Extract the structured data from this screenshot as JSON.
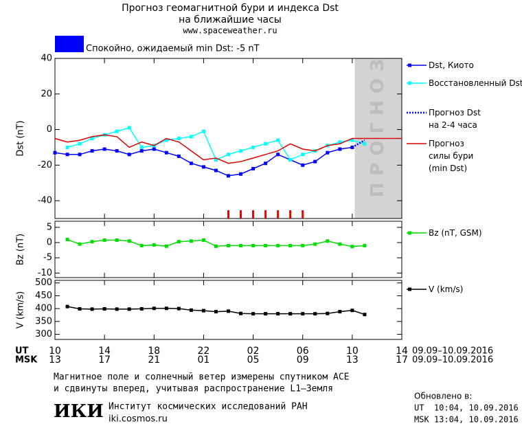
{
  "header": {
    "title_line1": "Прогноз геомагнитной бури и индекса Dst",
    "title_line2": "на ближайшие часы",
    "url": "www.spaceweather.ru",
    "status_color": "#0000ff",
    "status": "Спокойно, ожидаемый min Dst: -5 nT"
  },
  "chart_data": [
    {
      "type": "line",
      "ylabel": "Dst (nT)",
      "xlim": [
        0,
        28
      ],
      "ylim": [
        -50,
        40
      ],
      "yticks": [
        -40,
        -20,
        0,
        20,
        40
      ],
      "forecast_start": 24.2,
      "forecast_label": "ПРОГНОЗ",
      "storm_marks": [
        14,
        15,
        16,
        17,
        18,
        19,
        20
      ],
      "storm_color": "#ee0000",
      "series": [
        {
          "name": "Dst, Киото",
          "color": "#0000ff",
          "marker": true,
          "x": [
            0,
            1,
            2,
            3,
            4,
            5,
            6,
            7,
            8,
            9,
            10,
            11,
            12,
            13,
            14,
            15,
            16,
            17,
            18,
            19,
            20,
            21,
            22,
            23,
            24
          ],
          "values": [
            -13,
            -14,
            -14,
            -12,
            -11,
            -12,
            -14,
            -12,
            -11,
            -13,
            -15,
            -19,
            -21,
            -23,
            -26,
            -25,
            -22,
            -19,
            -14,
            -17,
            -20,
            -18,
            -13,
            -11,
            -10
          ]
        },
        {
          "name": "Восстановленный Dst",
          "color": "#00ffff",
          "marker": true,
          "x": [
            1,
            2,
            3,
            4,
            5,
            6,
            7,
            8,
            9,
            10,
            11,
            12,
            13,
            14,
            15,
            16,
            17,
            18,
            19,
            20,
            21,
            22,
            23,
            24,
            25
          ],
          "values": [
            -10,
            -8,
            -5,
            -3,
            -1,
            1,
            -10,
            -9,
            -6,
            -5,
            -4,
            -1,
            -17,
            -14,
            -12,
            -10,
            -8,
            -6,
            -17,
            -14,
            -12,
            -9,
            -7,
            -6,
            -8
          ]
        },
        {
          "name": "Прогноз Dst на 2-4 часа",
          "color": "#0000ff",
          "dotted": true,
          "x": [
            24,
            24.5,
            25
          ],
          "values": [
            -10,
            -8,
            -6
          ]
        },
        {
          "name": "Прогноз силы бури (min Dst)",
          "color": "#dd0000",
          "x": [
            0,
            1,
            2,
            3,
            4,
            5,
            6,
            7,
            8,
            9,
            10,
            11,
            12,
            13,
            14,
            15,
            16,
            17,
            18,
            19,
            20,
            21,
            22,
            23,
            24,
            25,
            26,
            27,
            28
          ],
          "values": [
            -5,
            -7,
            -6,
            -4,
            -3,
            -4,
            -10,
            -7,
            -9,
            -5,
            -7,
            -12,
            -17,
            -16,
            -19,
            -18,
            -16,
            -14,
            -12,
            -8,
            -11,
            -12,
            -9,
            -8,
            -5,
            -5,
            -5,
            -5,
            -5
          ]
        }
      ]
    },
    {
      "type": "line",
      "ylabel": "Bz (nT)",
      "xlim": [
        0,
        28
      ],
      "ylim": [
        -11.5,
        7
      ],
      "yticks": [
        -10,
        -5,
        0,
        5
      ],
      "series": [
        {
          "name": "Bz (nT, GSM)",
          "color": "#00dd00",
          "marker": true,
          "x": [
            1,
            2,
            3,
            4,
            5,
            6,
            7,
            8,
            9,
            10,
            11,
            12,
            13,
            14,
            15,
            16,
            17,
            18,
            19,
            20,
            21,
            22,
            23,
            24,
            25
          ],
          "values": [
            1,
            -0.5,
            0.3,
            0.8,
            0.8,
            0.5,
            -1,
            -0.8,
            -1.2,
            0.3,
            0.5,
            0.8,
            -1.2,
            -1,
            -1,
            -1,
            -1,
            -1,
            -1,
            -1,
            -0.5,
            0.5,
            -0.5,
            -1.3,
            -1
          ]
        }
      ]
    },
    {
      "type": "line",
      "ylabel": "V (km/s)",
      "xlim": [
        0,
        28
      ],
      "ylim": [
        280,
        510
      ],
      "yticks": [
        300,
        350,
        400,
        450,
        500
      ],
      "x_label": "UT",
      "x_dates": "09.09–10.09.2016",
      "xticks": [
        {
          "value": 0,
          "label": "10"
        },
        {
          "value": 4,
          "label": "14"
        },
        {
          "value": 8,
          "label": "18"
        },
        {
          "value": 12,
          "label": "22"
        },
        {
          "value": 16,
          "label": "02"
        },
        {
          "value": 20,
          "label": "06"
        },
        {
          "value": 24,
          "label": "10"
        },
        {
          "value": 28,
          "label": "14"
        }
      ],
      "x2_label": "MSK",
      "x2_dates": "09.09–10.09.2016",
      "x2ticks": [
        {
          "value": 0,
          "label": "13"
        },
        {
          "value": 4,
          "label": "17"
        },
        {
          "value": 8,
          "label": "21"
        },
        {
          "value": 12,
          "label": "01"
        },
        {
          "value": 16,
          "label": "05"
        },
        {
          "value": 20,
          "label": "09"
        },
        {
          "value": 24,
          "label": "13"
        },
        {
          "value": 28,
          "label": "17"
        }
      ],
      "series": [
        {
          "name": "V (km/s)",
          "color": "#000000",
          "marker": true,
          "x": [
            1,
            2,
            3,
            4,
            5,
            6,
            7,
            8,
            9,
            10,
            11,
            12,
            13,
            14,
            15,
            16,
            17,
            18,
            19,
            20,
            21,
            22,
            23,
            24,
            25
          ],
          "values": [
            408,
            399,
            398,
            399,
            398,
            398,
            399,
            401,
            401,
            400,
            394,
            392,
            388,
            390,
            381,
            380,
            380,
            380,
            380,
            380,
            380,
            381,
            388,
            393,
            377
          ]
        }
      ]
    }
  ],
  "footer": {
    "note_line1": "Магнитное поле и солнечный ветер измерены спутником ACE",
    "note_line2": "и сдвинуты вперед, учитывая распространение L1–Земля",
    "logo": "ИКИ",
    "institute": "Институт космических исследований РАН",
    "site": "iki.cosmos.ru",
    "updated_title": "Обновлено в:",
    "updated_ut": "UT  10:04, 10.09.2016",
    "updated_msk": "MSK 13:04, 10.09.2016"
  }
}
